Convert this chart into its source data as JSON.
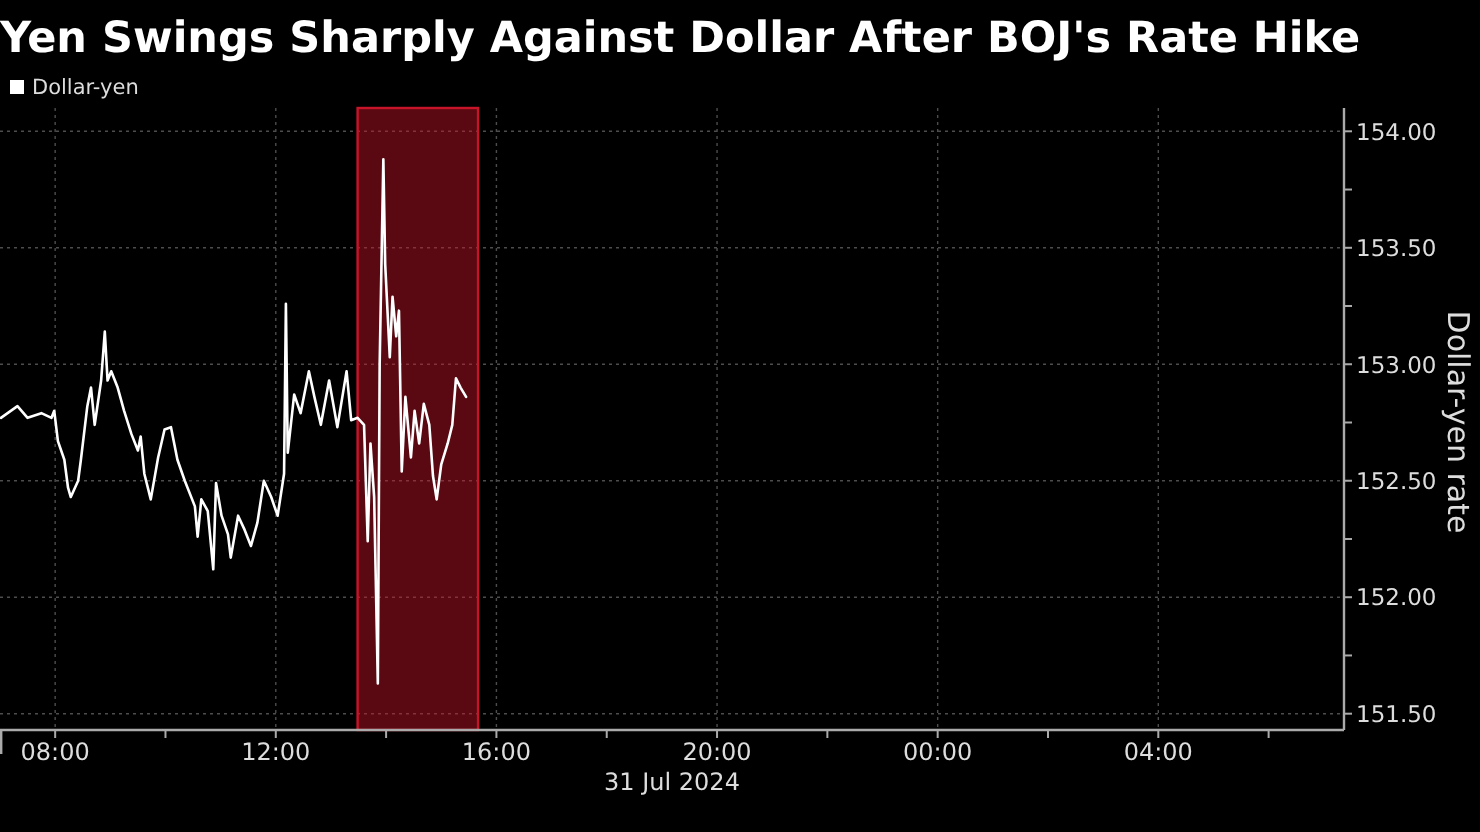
{
  "chart_data": {
    "type": "line",
    "title": "Yen Swings Sharply Against Dollar After BOJ's Rate Hike",
    "ylabel": "Dollar-yen rate",
    "x": [
      "2024-07-31T07:01",
      "2024-07-31T07:19",
      "2024-07-31T07:30",
      "2024-07-31T07:45",
      "2024-07-31T07:56",
      "2024-07-31T07:59",
      "2024-07-31T08:03",
      "2024-07-31T08:10",
      "2024-07-31T08:14",
      "2024-07-31T08:17",
      "2024-07-31T08:25",
      "2024-07-31T08:28",
      "2024-07-31T08:35",
      "2024-07-31T08:39",
      "2024-07-31T08:43",
      "2024-07-31T08:50",
      "2024-07-31T08:54",
      "2024-07-31T08:57",
      "2024-07-31T09:01",
      "2024-07-31T09:08",
      "2024-07-31T09:15",
      "2024-07-31T09:23",
      "2024-07-31T09:30",
      "2024-07-31T09:33",
      "2024-07-31T09:37",
      "2024-07-31T09:44",
      "2024-07-31T09:52",
      "2024-07-31T09:59",
      "2024-07-31T10:06",
      "2024-07-31T10:13",
      "2024-07-31T10:21",
      "2024-07-31T10:32",
      "2024-07-31T10:35",
      "2024-07-31T10:39",
      "2024-07-31T10:46",
      "2024-07-31T10:52",
      "2024-07-31T10:55",
      "2024-07-31T11:01",
      "2024-07-31T11:08",
      "2024-07-31T11:11",
      "2024-07-31T11:19",
      "2024-07-31T11:26",
      "2024-07-31T11:33",
      "2024-07-31T11:40",
      "2024-07-31T11:47",
      "2024-07-31T11:55",
      "2024-07-31T12:02",
      "2024-07-31T12:09",
      "2024-07-31T12:11",
      "2024-07-31T12:13",
      "2024-07-31T12:20",
      "2024-07-31T12:27",
      "2024-07-31T12:36",
      "2024-07-31T12:42",
      "2024-07-31T12:49",
      "2024-07-31T12:58",
      "2024-07-31T13:07",
      "2024-07-31T13:17",
      "2024-07-31T13:22",
      "2024-07-31T13:29",
      "2024-07-31T13:36",
      "2024-07-31T13:40",
      "2024-07-31T13:43",
      "2024-07-31T13:47",
      "2024-07-31T13:51",
      "2024-07-31T13:53",
      "2024-07-31T13:57",
      "2024-07-31T13:59",
      "2024-07-31T14:04",
      "2024-07-31T14:07",
      "2024-07-31T14:11",
      "2024-07-31T14:14",
      "2024-07-31T14:17",
      "2024-07-31T14:21",
      "2024-07-31T14:27",
      "2024-07-31T14:31",
      "2024-07-31T14:36",
      "2024-07-31T14:41",
      "2024-07-31T14:47",
      "2024-07-31T14:51",
      "2024-07-31T14:55",
      "2024-07-31T15:00",
      "2024-07-31T15:07",
      "2024-07-31T15:12",
      "2024-07-31T15:16",
      "2024-07-31T15:21",
      "2024-07-31T15:27"
    ],
    "series": [
      {
        "name": "Dollar-yen",
        "color": "#ffffff",
        "values": [
          152.77,
          152.82,
          152.77,
          152.79,
          152.77,
          152.8,
          152.67,
          152.59,
          152.47,
          152.43,
          152.5,
          152.59,
          152.82,
          152.9,
          152.74,
          152.93,
          153.14,
          152.93,
          152.97,
          152.9,
          152.8,
          152.7,
          152.63,
          152.69,
          152.53,
          152.42,
          152.6,
          152.72,
          152.73,
          152.59,
          152.5,
          152.39,
          152.26,
          152.42,
          152.37,
          152.12,
          152.49,
          152.35,
          152.27,
          152.17,
          152.35,
          152.29,
          152.22,
          152.32,
          152.5,
          152.43,
          152.35,
          152.53,
          153.26,
          152.62,
          152.87,
          152.79,
          152.97,
          152.86,
          152.74,
          152.93,
          152.73,
          152.97,
          152.76,
          152.77,
          152.74,
          152.24,
          152.66,
          152.43,
          151.63,
          153.0,
          153.88,
          153.43,
          153.03,
          153.29,
          153.12,
          153.23,
          152.54,
          152.86,
          152.6,
          152.8,
          152.66,
          152.83,
          152.74,
          152.52,
          152.42,
          152.57,
          152.66,
          152.74,
          152.94,
          152.9,
          152.86
        ]
      }
    ],
    "xlim": [
      "2024-07-31T07:00",
      "2024-08-01T07:22"
    ],
    "xticks": [
      {
        "value": "2024-07-31T08:00",
        "label": "08:00"
      },
      {
        "value": "2024-07-31T10:00",
        "label": null
      },
      {
        "value": "2024-07-31T12:00",
        "label": "12:00"
      },
      {
        "value": "2024-07-31T14:00",
        "label": null
      },
      {
        "value": "2024-07-31T16:00",
        "label": "16:00"
      },
      {
        "value": "2024-07-31T18:00",
        "label": null
      },
      {
        "value": "2024-07-31T20:00",
        "label": "20:00"
      },
      {
        "value": "2024-07-31T22:00",
        "label": null
      },
      {
        "value": "2024-08-01T00:00",
        "label": "00:00"
      },
      {
        "value": "2024-08-01T02:00",
        "label": null
      },
      {
        "value": "2024-08-01T04:00",
        "label": "04:00"
      },
      {
        "value": "2024-08-01T06:00",
        "label": null
      }
    ],
    "ylim": [
      151.43,
      154.1
    ],
    "yticks": [
      {
        "value": 151.5,
        "label": "151.50"
      },
      {
        "value": 151.75,
        "label": null
      },
      {
        "value": 152,
        "label": "152.00"
      },
      {
        "value": 152.25,
        "label": null
      },
      {
        "value": 152.5,
        "label": "152.50"
      },
      {
        "value": 152.75,
        "label": null
      },
      {
        "value": 153,
        "label": "153.00"
      },
      {
        "value": 153.25,
        "label": null
      },
      {
        "value": 153.5,
        "label": "153.50"
      },
      {
        "value": 153.75,
        "label": null
      },
      {
        "value": 154,
        "label": "154.00"
      }
    ],
    "bands": [
      {
        "axis": "x",
        "from": "2024-07-31T13:29",
        "to": "2024-07-31T15:40",
        "color": "#c81428"
      }
    ],
    "grid": true,
    "legend": "top left",
    "annotations": [
      "31 Jul 2024"
    ]
  }
}
